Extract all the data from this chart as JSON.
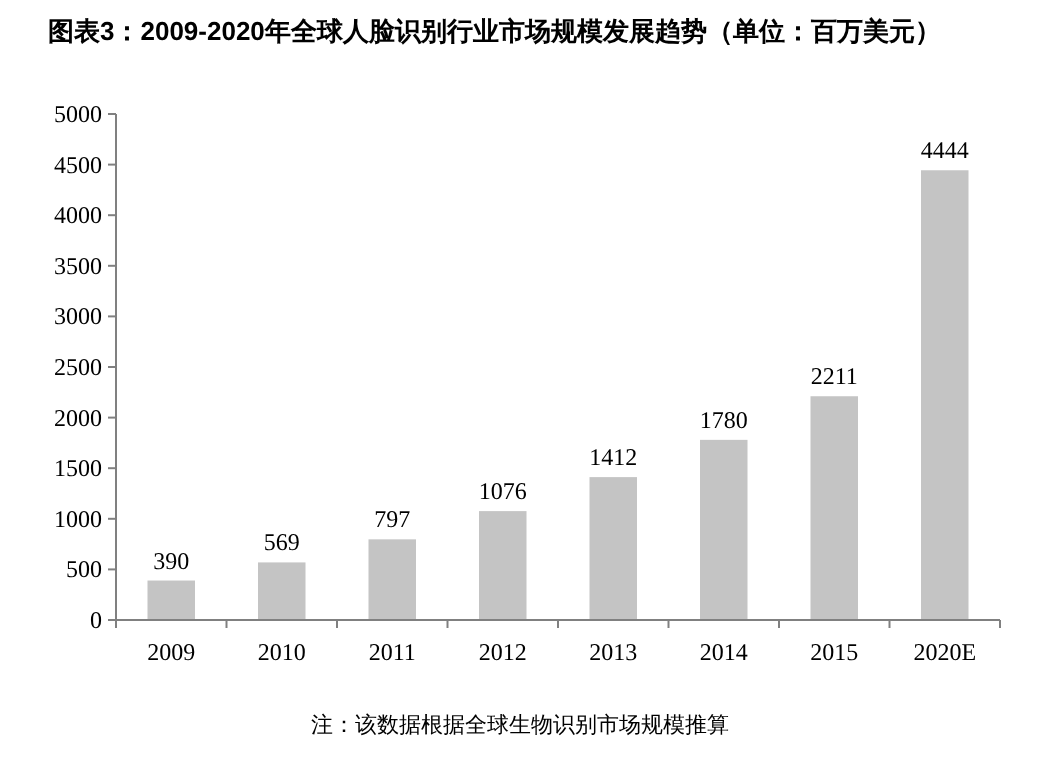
{
  "chart_data": {
    "type": "bar",
    "title": "图表3：2009-2020年全球人脸识别行业市场规模发展趋势（单位：百万美元）",
    "categories": [
      "2009",
      "2010",
      "2011",
      "2012",
      "2013",
      "2014",
      "2015",
      "2020E"
    ],
    "values": [
      390,
      569,
      797,
      1076,
      1412,
      1780,
      2211,
      4444
    ],
    "color": "#c4c4c4",
    "data_labels": true,
    "grid": false,
    "ylim": [
      0,
      5000
    ],
    "yticks": [
      0,
      500,
      1000,
      1500,
      2000,
      2500,
      3000,
      3500,
      4000,
      4500,
      5000
    ],
    "annotations": [
      "注：该数据根据全球生物识别市场规模推算"
    ]
  }
}
